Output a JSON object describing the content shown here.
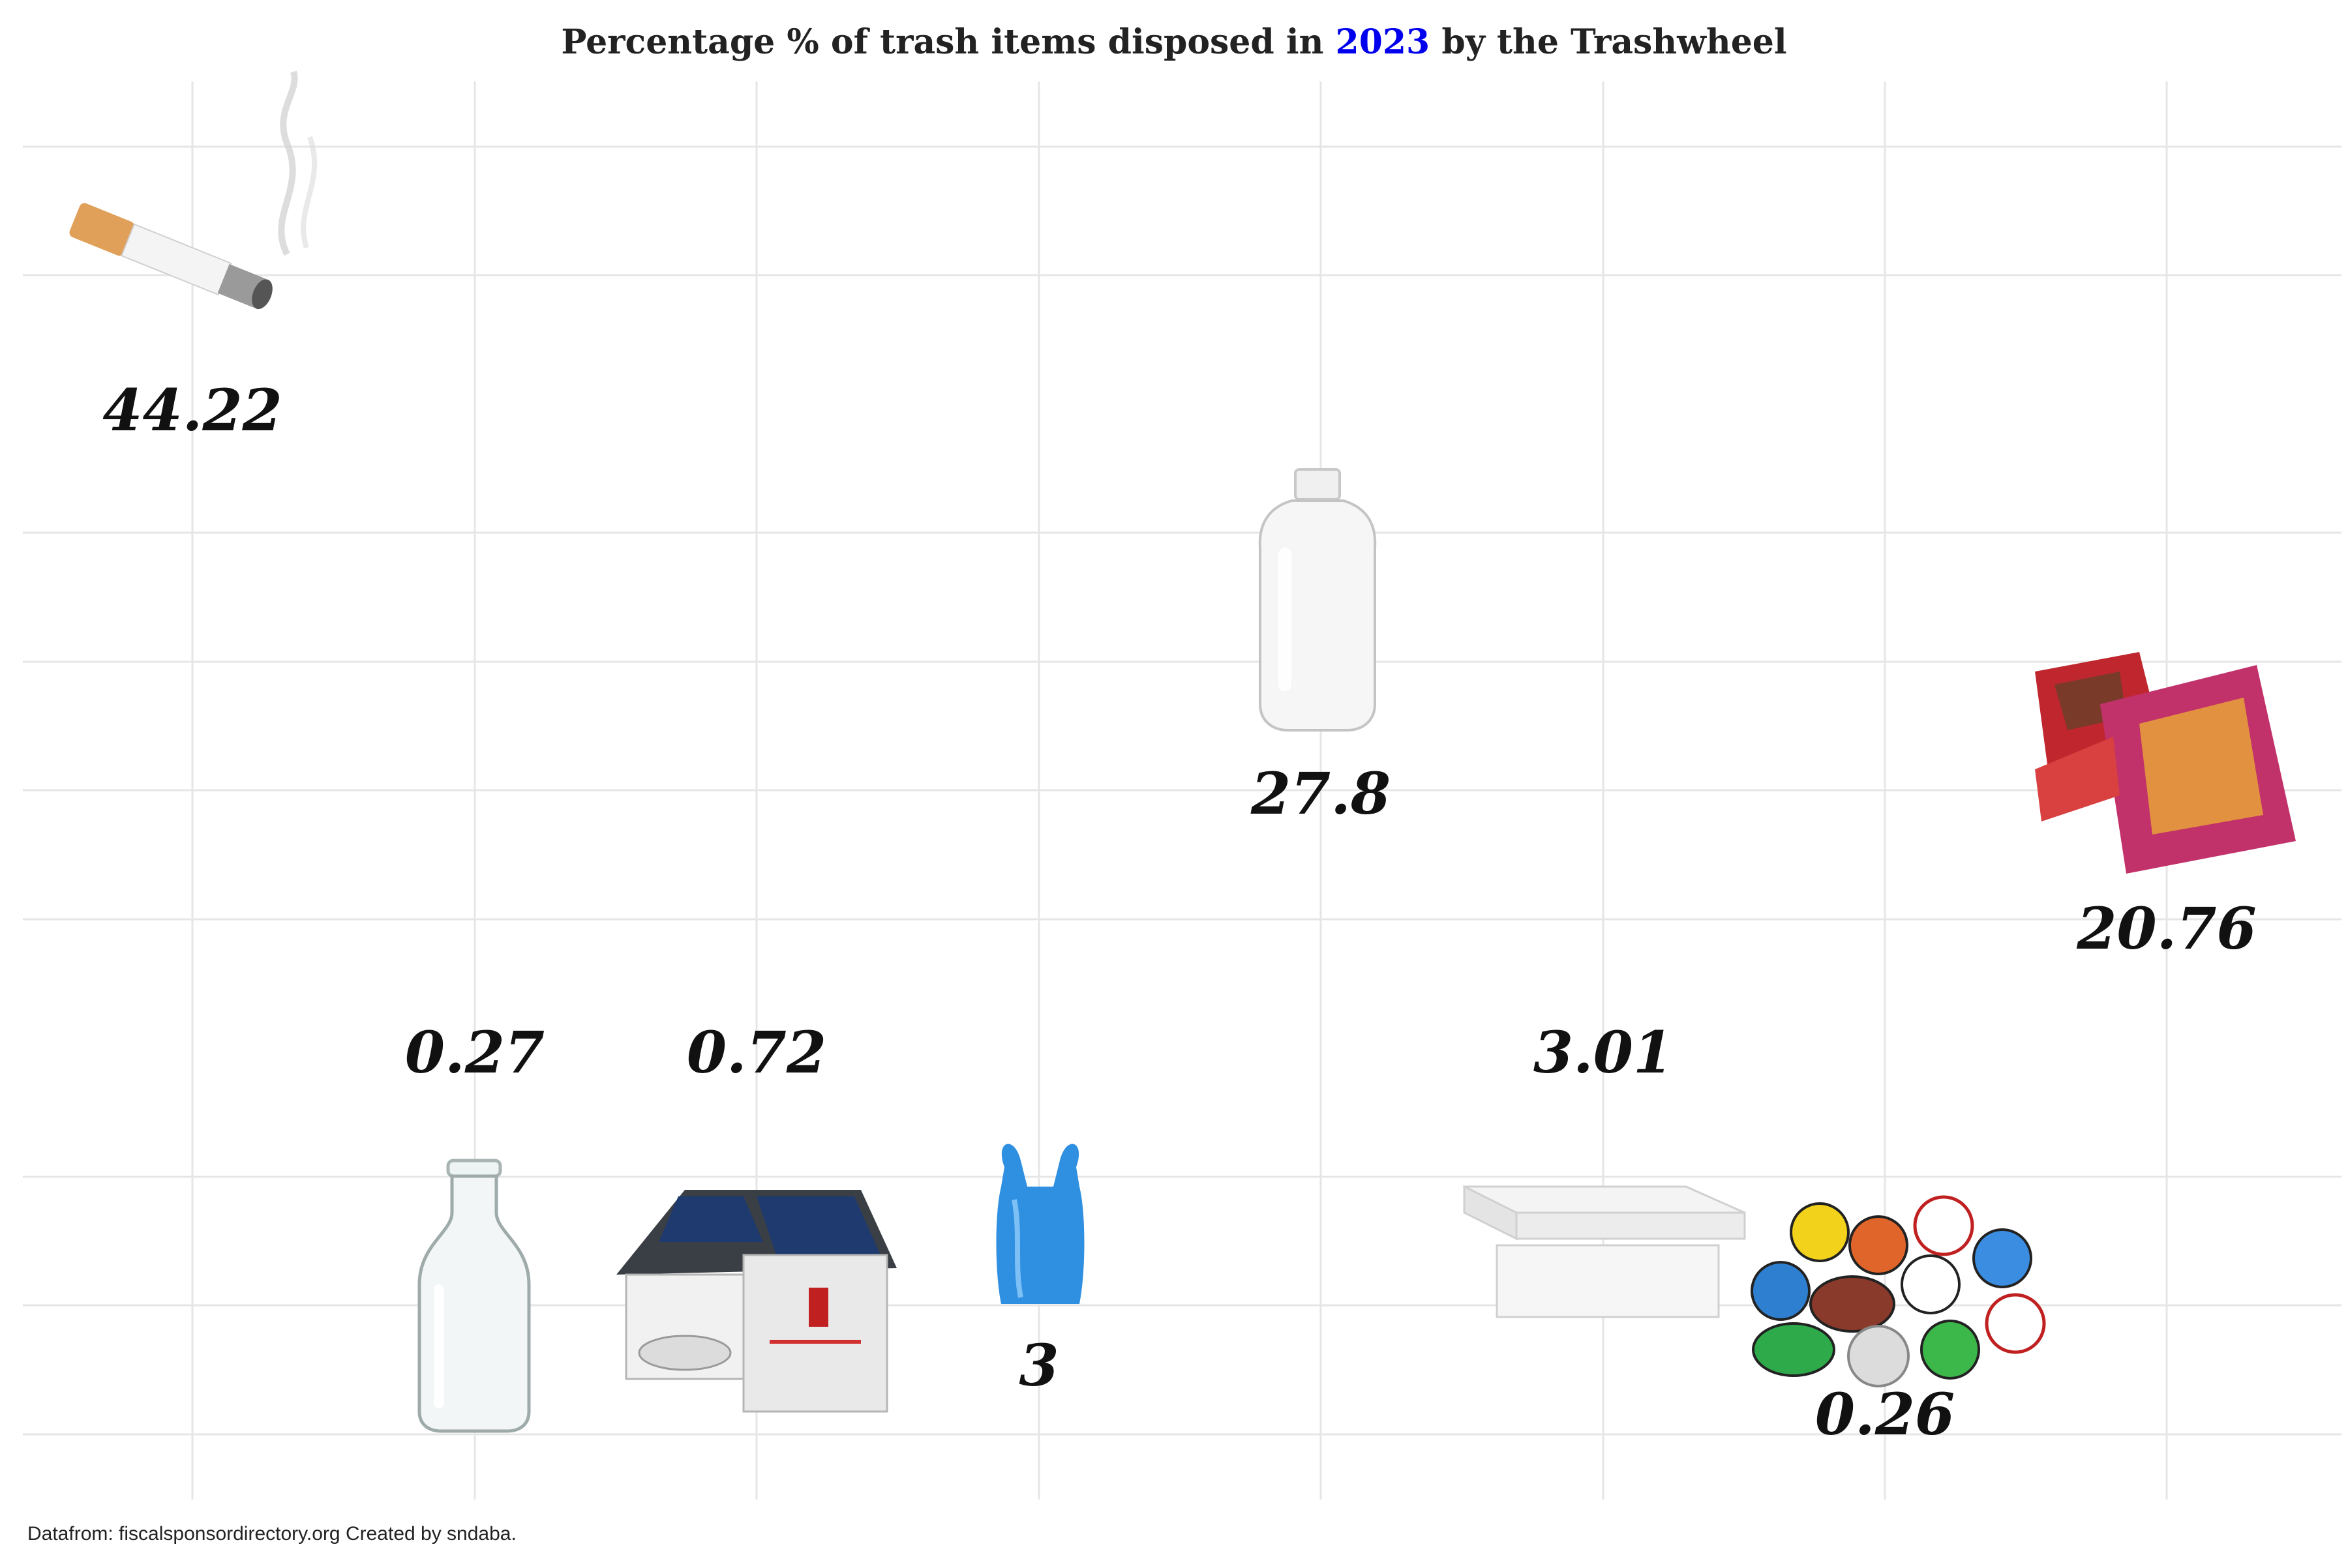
{
  "title": {
    "prefix": "Percentage % of trash  items disposed  in ",
    "year": "2023",
    "suffix": " by the  Trashwheel",
    "year_color": "#0000ee"
  },
  "caption": "Datafrom: fiscalsponsordirectory.org Created  by sndaba.",
  "colors": {
    "grid": "#e6e6e6",
    "label": "#111111",
    "title": "#222222"
  },
  "chart_data": {
    "type": "scatter",
    "title": "Percentage % of trash  items disposed  in 2023 by the  Trashwheel",
    "xlabel": "",
    "ylabel": "",
    "grid": true,
    "legend": "none",
    "points": [
      {
        "item": "cigarette butts",
        "icon": "cigarette-butt-icon",
        "value": 44.22,
        "label": "44.22"
      },
      {
        "item": "glass bottles",
        "icon": "glass-bottle-icon",
        "value": 0.27,
        "label": "0.27"
      },
      {
        "item": "homes powered",
        "icon": "solar-house-icon",
        "value": 0.72,
        "label": "0.72"
      },
      {
        "item": "plastic bags",
        "icon": "plastic-bag-icon",
        "value": 3,
        "label": "3"
      },
      {
        "item": "plastic bottles",
        "icon": "plastic-bottle-icon",
        "value": 27.8,
        "label": "27.8"
      },
      {
        "item": "polystyrene",
        "icon": "polystyrene-icon",
        "value": 3.01,
        "label": "3.01"
      },
      {
        "item": "sports balls",
        "icon": "sports-balls-icon",
        "value": 0.26,
        "label": "0.26"
      },
      {
        "item": "wrappers",
        "icon": "wrappers-icon",
        "value": 20.76,
        "label": "20.76"
      }
    ]
  }
}
